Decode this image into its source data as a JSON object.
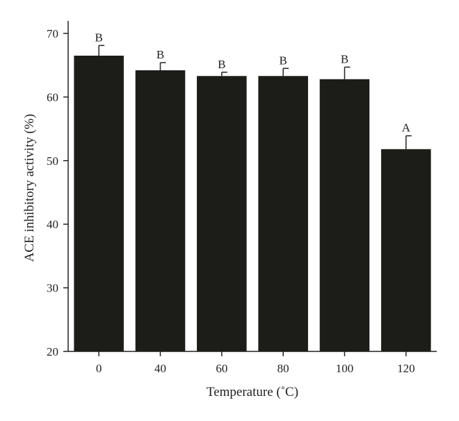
{
  "chart_data": {
    "type": "bar",
    "title": "",
    "xlabel": "Temperature (˚C)",
    "ylabel": "ACE inhibitory activity (%)",
    "categories": [
      "0",
      "40",
      "60",
      "80",
      "100",
      "120"
    ],
    "values": [
      66.5,
      64.2,
      63.3,
      63.3,
      62.8,
      51.8
    ],
    "errors": [
      1.6,
      1.2,
      0.6,
      1.2,
      1.9,
      2.1
    ],
    "significance_labels": [
      "B",
      "B",
      "B",
      "B",
      "B",
      "A"
    ],
    "ylim": [
      20,
      72
    ],
    "yticks": [
      20,
      30,
      40,
      50,
      60,
      70
    ],
    "grid": false,
    "legend": "none",
    "bar_color": "#1c1c19"
  }
}
